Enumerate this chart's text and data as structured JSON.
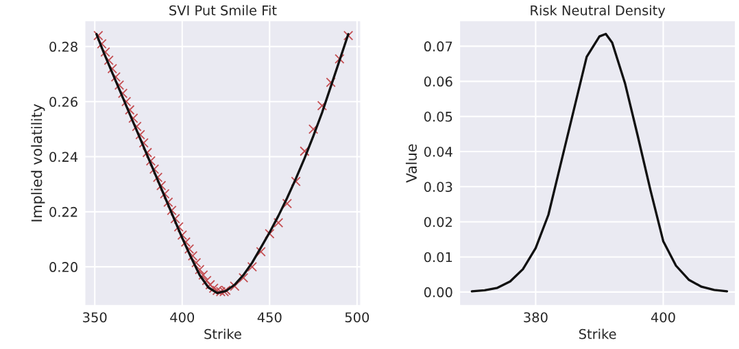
{
  "chart_data": [
    {
      "type": "scatter",
      "title": "SVI Put Smile Fit",
      "xlabel": "Strike",
      "ylabel": "Implied volatility",
      "xlim": [
        344.4,
        502
      ],
      "xticks": [
        350,
        400,
        450,
        500
      ],
      "ylim": [
        0.186,
        0.2893
      ],
      "yticks": [
        {
          "value": 0.2,
          "label": "0.20"
        },
        {
          "value": 0.22,
          "label": "0.22"
        },
        {
          "value": 0.24,
          "label": "0.24"
        },
        {
          "value": 0.26,
          "label": "0.26"
        },
        {
          "value": 0.28,
          "label": "0.28"
        }
      ],
      "grid": true,
      "series": [
        {
          "marker": "cross",
          "color": "#c44e52",
          "x": [
            352,
            354,
            356,
            358,
            360,
            362,
            364,
            366,
            368,
            370,
            372,
            374,
            376,
            378,
            380,
            382,
            384,
            386,
            388,
            390,
            392,
            394,
            396,
            398,
            400,
            402,
            404,
            406,
            408,
            410,
            412,
            414,
            416,
            418,
            420,
            422,
            424,
            425,
            430,
            435,
            440,
            445,
            450,
            455,
            460,
            465,
            470,
            475,
            480,
            485,
            490,
            495
          ],
          "values": [
            0.284,
            0.281,
            0.278,
            0.275,
            0.272,
            0.269,
            0.266,
            0.263,
            0.26,
            0.257,
            0.254,
            0.251,
            0.248,
            0.245,
            0.2415,
            0.2385,
            0.2355,
            0.2325,
            0.2295,
            0.2265,
            0.2235,
            0.2205,
            0.2175,
            0.2145,
            0.2115,
            0.209,
            0.2065,
            0.204,
            0.2015,
            0.199,
            0.197,
            0.195,
            0.1935,
            0.1922,
            0.1914,
            0.191,
            0.191,
            0.1915,
            0.193,
            0.196,
            0.2,
            0.2055,
            0.212,
            0.216,
            0.223,
            0.231,
            0.242,
            0.25,
            0.2585,
            0.267,
            0.2755,
            0.284
          ]
        },
        {
          "type": "line",
          "color": "#111111",
          "x": [
            351,
            355,
            360,
            365,
            370,
            375,
            380,
            385,
            390,
            395,
            400,
            405,
            410,
            415,
            420,
            425,
            430,
            435,
            440,
            445,
            450,
            455,
            460,
            465,
            470,
            475,
            480,
            485,
            490,
            495
          ],
          "values": [
            0.2845,
            0.278,
            0.2705,
            0.263,
            0.2555,
            0.248,
            0.2405,
            0.233,
            0.2255,
            0.218,
            0.2105,
            0.2035,
            0.197,
            0.1925,
            0.1905,
            0.1912,
            0.1935,
            0.197,
            0.2015,
            0.207,
            0.2125,
            0.2185,
            0.225,
            0.232,
            0.2395,
            0.2475,
            0.256,
            0.2655,
            0.275,
            0.2845
          ]
        }
      ]
    },
    {
      "type": "line",
      "title": "Risk Neutral Density",
      "xlabel": "Strike",
      "ylabel": "Value",
      "xlim": [
        368.1,
        411.3
      ],
      "xticks": [
        380,
        400
      ],
      "ylim": [
        -0.0038,
        0.0772
      ],
      "yticks": [
        {
          "value": 0,
          "label": "0.00"
        },
        {
          "value": 0.01,
          "label": "0.01"
        },
        {
          "value": 0.02,
          "label": "0.02"
        },
        {
          "value": 0.03,
          "label": "0.03"
        },
        {
          "value": 0.04,
          "label": "0.04"
        },
        {
          "value": 0.05,
          "label": "0.05"
        },
        {
          "value": 0.06,
          "label": "0.06"
        },
        {
          "value": 0.07,
          "label": "0.07"
        }
      ],
      "grid": true,
      "series": [
        {
          "color": "#111111",
          "x": [
            370,
            372,
            374,
            376,
            378,
            380,
            382,
            384,
            386,
            388,
            390,
            391,
            392,
            394,
            396,
            398,
            400,
            402,
            404,
            406,
            408,
            410
          ],
          "values": [
            0.0002,
            0.0005,
            0.0012,
            0.003,
            0.0065,
            0.0125,
            0.022,
            0.037,
            0.052,
            0.067,
            0.0728,
            0.0735,
            0.071,
            0.0595,
            0.0445,
            0.029,
            0.0145,
            0.0075,
            0.0035,
            0.0015,
            0.0006,
            0.0002
          ]
        }
      ]
    }
  ]
}
